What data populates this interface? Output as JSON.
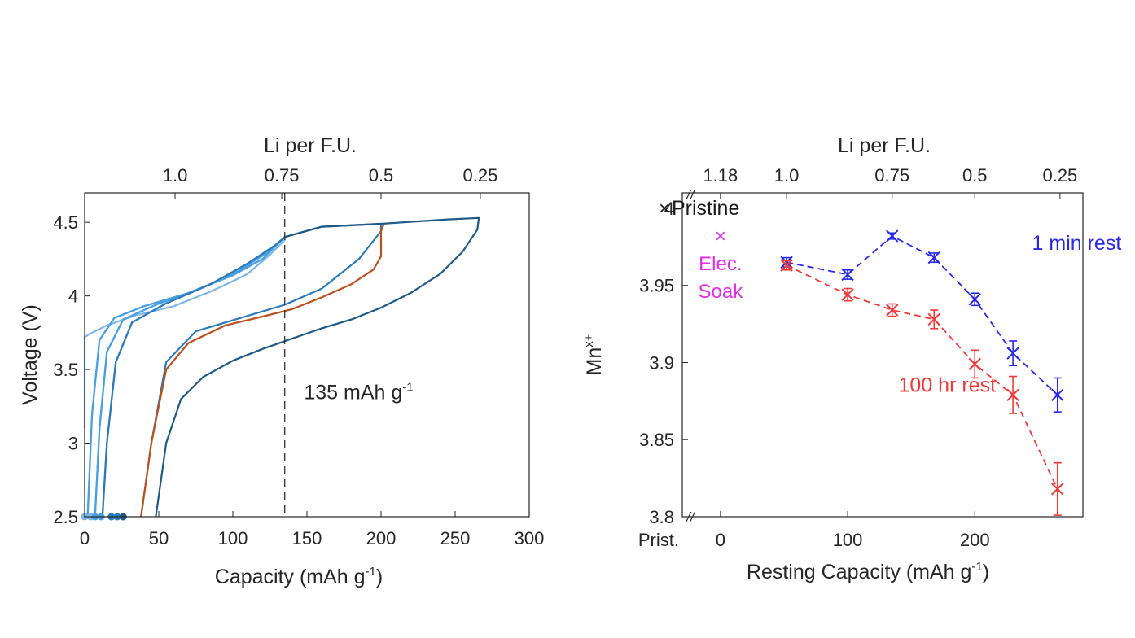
{
  "colors": {
    "light": "#7fb6e6",
    "mid_light": "#4a9fe0",
    "mid": "#2e7ab8",
    "orange": "#b9521f",
    "dark": "#1f5a86",
    "blue": "#2a2ae6",
    "red": "#f03a3a",
    "magenta": "#e22ee6",
    "black": "#1a1a1a",
    "axis": "#262626"
  },
  "chart_data": [
    {
      "type": "line",
      "xlabel": "Capacity (mAh g",
      "xlabel_sup": "-1",
      "xlabel_tail": ")",
      "ylabel": "Voltage (V)",
      "top_xlabel": "Li per F.U.",
      "xlim": [
        0,
        300
      ],
      "ylim": [
        2.5,
        4.7
      ],
      "x_ticks": [
        0,
        50,
        100,
        150,
        200,
        250,
        300
      ],
      "x_tick_labels": [
        "0",
        "50",
        "100",
        "150",
        "200",
        "250",
        "300"
      ],
      "y_ticks": [
        2.5,
        3,
        3.5,
        4,
        4.5
      ],
      "y_tick_labels": [
        "2.5",
        "3",
        "3.5",
        "4",
        "4.5"
      ],
      "top_ticks": [
        {
          "x": 61,
          "label": "1.0"
        },
        {
          "x": 133,
          "label": "0.75"
        },
        {
          "x": 200,
          "label": "0.5"
        },
        {
          "x": 267,
          "label": "0.25"
        }
      ],
      "vline": {
        "x": 135,
        "label": "135 mAh g",
        "label_sup": "-1",
        "label_x": 148,
        "label_y": 3.3
      },
      "series": [
        {
          "color": "light",
          "points": [
            [
              0,
              3.1
            ],
            [
              0,
              3.72
            ],
            [
              3,
              3.74
            ],
            [
              15,
              3.8
            ],
            [
              35,
              3.87
            ],
            [
              60,
              3.93
            ],
            [
              85,
              4.03
            ],
            [
              100,
              4.1
            ],
            [
              110,
              4.15
            ],
            [
              125,
              4.28
            ],
            [
              135,
              4.38
            ],
            [
              135,
              4.4
            ],
            [
              120,
              4.25
            ],
            [
              100,
              4.14
            ],
            [
              70,
              4.02
            ],
            [
              40,
              3.93
            ],
            [
              20,
              3.85
            ],
            [
              10,
              3.7
            ],
            [
              5,
              3.2
            ],
            [
              2,
              2.5
            ]
          ]
        },
        {
          "color": "mid_light",
          "points": [
            [
              2,
              2.5
            ],
            [
              5,
              3.2
            ],
            [
              10,
              3.7
            ],
            [
              20,
              3.85
            ],
            [
              40,
              3.93
            ],
            [
              70,
              4.02
            ],
            [
              100,
              4.14
            ],
            [
              120,
              4.25
            ],
            [
              135,
              4.4
            ],
            [
              124,
              4.3
            ],
            [
              104,
              4.17
            ],
            [
              78,
              4.05
            ],
            [
              48,
              3.94
            ],
            [
              26,
              3.84
            ],
            [
              15,
              3.62
            ],
            [
              10,
              3.1
            ],
            [
              7,
              2.5
            ]
          ]
        },
        {
          "color": "mid_light",
          "points": [
            [
              7,
              2.5
            ],
            [
              10,
              3.1
            ],
            [
              15,
              3.62
            ],
            [
              26,
              3.84
            ],
            [
              48,
              3.94
            ],
            [
              78,
              4.05
            ],
            [
              104,
              4.17
            ],
            [
              124,
              4.3
            ],
            [
              135,
              4.4
            ],
            [
              128,
              4.34
            ],
            [
              110,
              4.22
            ],
            [
              85,
              4.08
            ],
            [
              55,
              3.95
            ],
            [
              32,
              3.82
            ],
            [
              21,
              3.55
            ],
            [
              15,
              3.0
            ],
            [
              12,
              2.5
            ]
          ]
        },
        {
          "color": "mid",
          "points": [
            [
              12,
              2.5
            ],
            [
              15,
              3.0
            ],
            [
              21,
              3.55
            ],
            [
              32,
              3.82
            ],
            [
              55,
              3.95
            ],
            [
              85,
              4.08
            ],
            [
              110,
              4.22
            ],
            [
              128,
              4.34
            ],
            [
              135,
              4.4
            ],
            [
              160,
              4.47
            ],
            [
              200,
              4.49
            ],
            [
              200,
              4.44
            ],
            [
              185,
              4.25
            ],
            [
              160,
              4.05
            ],
            [
              135,
              3.94
            ],
            [
              105,
              3.85
            ],
            [
              75,
              3.76
            ],
            [
              55,
              3.55
            ],
            [
              45,
              3.0
            ],
            [
              38,
              2.5
            ]
          ]
        },
        {
          "color": "orange",
          "points": [
            [
              38,
              2.5
            ],
            [
              45,
              3.0
            ],
            [
              55,
              3.5
            ],
            [
              70,
              3.68
            ],
            [
              95,
              3.8
            ],
            [
              120,
              3.86
            ],
            [
              140,
              3.91
            ],
            [
              160,
              3.99
            ],
            [
              180,
              4.08
            ],
            [
              195,
              4.18
            ],
            [
              200,
              4.27
            ],
            [
              200,
              4.44
            ],
            [
              202,
              4.49
            ]
          ]
        },
        {
          "color": "dark",
          "points": [
            [
              48,
              2.5
            ],
            [
              55,
              3.0
            ],
            [
              65,
              3.3
            ],
            [
              80,
              3.45
            ],
            [
              100,
              3.56
            ],
            [
              120,
              3.64
            ],
            [
              140,
              3.71
            ],
            [
              160,
              3.78
            ],
            [
              180,
              3.84
            ],
            [
              200,
              3.92
            ],
            [
              220,
              4.02
            ],
            [
              240,
              4.15
            ],
            [
              255,
              4.3
            ],
            [
              265,
              4.45
            ],
            [
              266,
              4.53
            ],
            [
              245,
              4.52
            ],
            [
              200,
              4.49
            ],
            [
              160,
              4.47
            ],
            [
              135,
              4.4
            ]
          ]
        }
      ],
      "start_points": [
        {
          "x": 0,
          "color": "light"
        },
        {
          "x": 4,
          "color": "light"
        },
        {
          "x": 7,
          "color": "mid_light"
        },
        {
          "x": 11,
          "color": "mid_light"
        },
        {
          "x": 18,
          "color": "mid"
        },
        {
          "x": 22,
          "color": "mid"
        },
        {
          "x": 26,
          "color": "dark"
        }
      ]
    },
    {
      "type": "scatter",
      "xlabel": "Resting Capacity (mAh g",
      "xlabel_sup": "-1",
      "xlabel_tail": ")",
      "ylabel": "Mn",
      "ylabel_sup": "x+",
      "top_xlabel": "Li per F.U.",
      "xlim": [
        -30,
        285
      ],
      "ylim": [
        3.8,
        4.01
      ],
      "x_ticks": [
        0,
        100,
        200
      ],
      "x_tick_labels": [
        "0",
        "100",
        "200"
      ],
      "pristine_x_label": "Prist.",
      "y_ticks": [
        3.8,
        3.85,
        3.9,
        3.95
      ],
      "y_tick_labels": [
        "3.8",
        "3.85",
        "3.9",
        "3.95"
      ],
      "top_ticks": [
        {
          "x": 0,
          "label": "1.18"
        },
        {
          "x": 52,
          "label": "1.0"
        },
        {
          "x": 135,
          "label": "0.75"
        },
        {
          "x": 200,
          "label": "0.5"
        },
        {
          "x": 267,
          "label": "0.25"
        }
      ],
      "break_mark": "//",
      "pristine": {
        "y": 4.0,
        "y_label": "4",
        "marker": "×",
        "label": "Pristine"
      },
      "elec_soak": {
        "x": 0,
        "y": 3.982,
        "marker": "×",
        "label_line1": "Elec.",
        "label_line2": "Soak"
      },
      "series": [
        {
          "name": "1 min rest",
          "color": "blue",
          "label_x": 245,
          "label_y": 3.973,
          "x": [
            52,
            100,
            135,
            168,
            200,
            230,
            265
          ],
          "y": [
            3.965,
            3.957,
            3.982,
            3.968,
            3.941,
            3.906,
            3.879
          ],
          "err": [
            0.003,
            0.003,
            0.002,
            0.003,
            0.004,
            0.008,
            0.011
          ]
        },
        {
          "name": "100 hr rest",
          "color": "red",
          "label_x": 140,
          "label_y": 3.881,
          "x": [
            52,
            100,
            135,
            168,
            200,
            230,
            265
          ],
          "y": [
            3.963,
            3.944,
            3.934,
            3.928,
            3.899,
            3.879,
            3.818
          ],
          "err": [
            0.003,
            0.004,
            0.004,
            0.006,
            0.009,
            0.012,
            0.017
          ]
        }
      ]
    }
  ]
}
